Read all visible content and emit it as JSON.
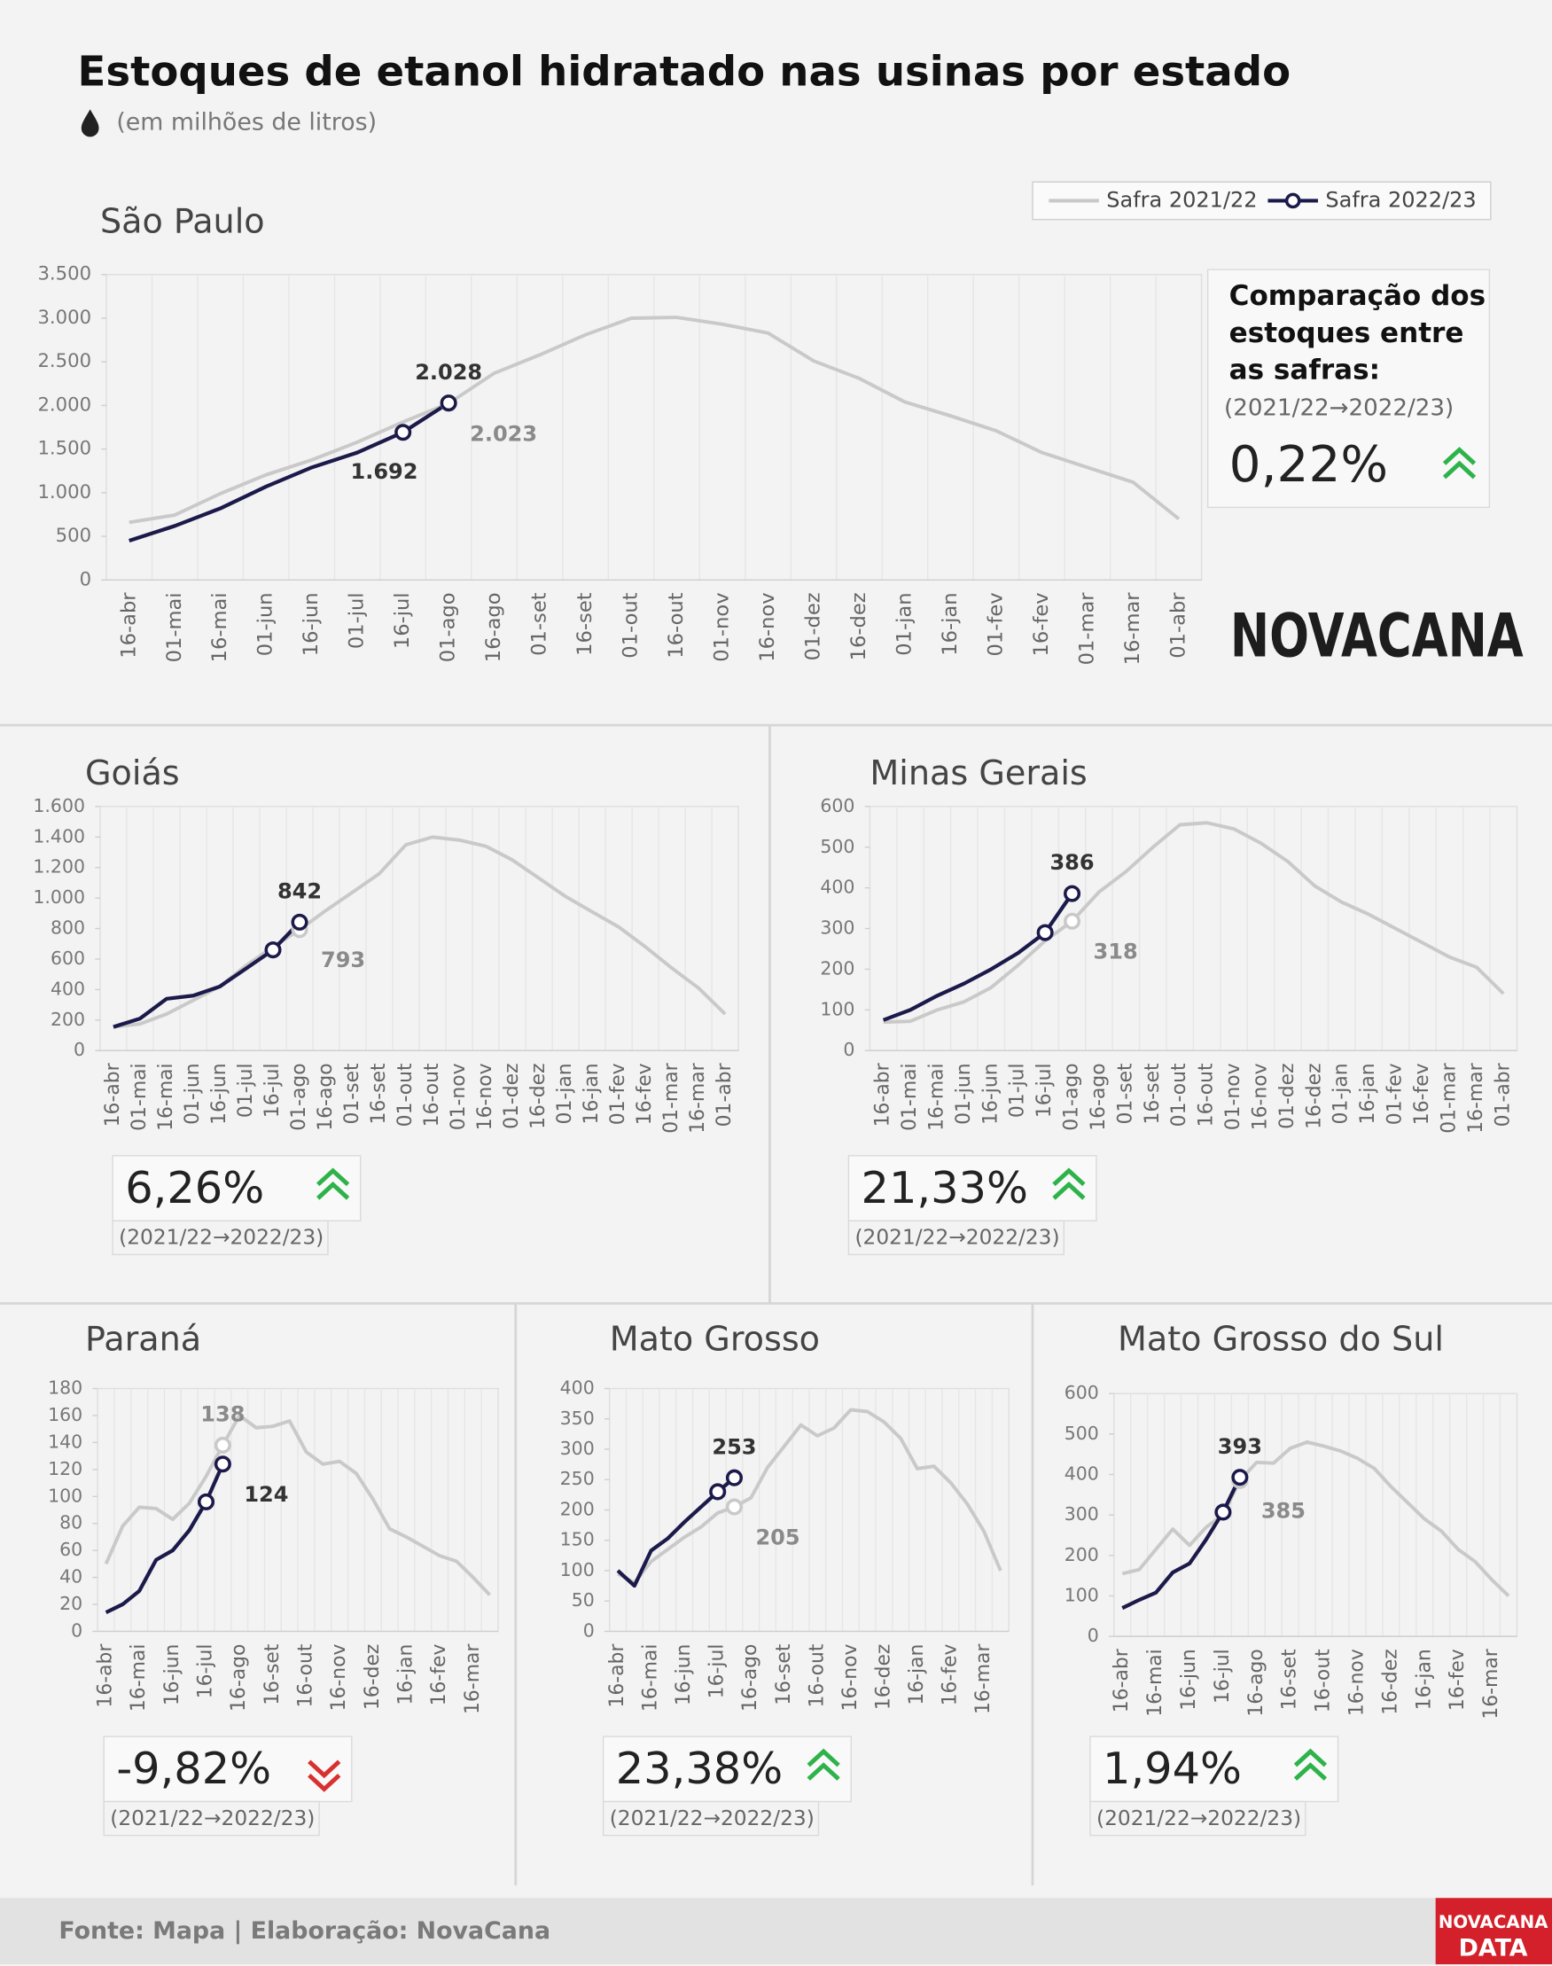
{
  "title": "Estoques de etanol hidratado nas usinas por estado",
  "subtitle": "(em milhões de litros)",
  "logo": "NOVACANA",
  "comparison_heading": "Comparação dos estoques entre as safras:",
  "source": "Fonte: Mapa | Elaboração: NovaCana",
  "footer_logo": {
    "top": "NOVACANA",
    "bottom": "DATA"
  },
  "chart_data": [
    {
      "type": "line",
      "title": "São Paulo",
      "legend": true,
      "categories": [
        "16-abr",
        "01-mai",
        "16-mai",
        "01-jun",
        "16-jun",
        "01-jul",
        "16-jul",
        "01-ago",
        "16-ago",
        "01-set",
        "16-set",
        "01-out",
        "16-out",
        "01-nov",
        "16-nov",
        "01-dez",
        "16-dez",
        "01-jan",
        "16-jan",
        "01-fev",
        "16-fev",
        "01-mar",
        "16-mar",
        "01-abr"
      ],
      "series": [
        {
          "name": "Safra 2021/22",
          "color": "#c9c9c9",
          "values": [
            660,
            745,
            990,
            1205,
            1375,
            1580,
            1810,
            2023,
            2370,
            2580,
            2810,
            3000,
            3010,
            2930,
            2830,
            2510,
            2310,
            2040,
            1880,
            1710,
            1460,
            1290,
            1120,
            700
          ],
          "value_labels": [
            null,
            null,
            null,
            null,
            null,
            null,
            null,
            "2.023",
            null,
            null,
            null,
            null,
            null,
            null,
            null,
            null,
            null,
            null,
            null,
            null,
            null,
            null,
            null,
            null
          ]
        },
        {
          "name": "Safra 2022/23",
          "color": "#1b1a4a",
          "values": [
            450,
            620,
            820,
            1070,
            1290,
            1460,
            1692,
            2028,
            null,
            null,
            null,
            null,
            null,
            null,
            null,
            null,
            null,
            null,
            null,
            null,
            null,
            null,
            null,
            null
          ],
          "value_labels": [
            null,
            null,
            null,
            null,
            null,
            null,
            "1.692",
            "2.028",
            null,
            null,
            null,
            null,
            null,
            null,
            null,
            null,
            null,
            null,
            null,
            null,
            null,
            null,
            null,
            null
          ]
        }
      ],
      "ylim": [
        0,
        3500
      ],
      "yticks": [
        0,
        500,
        {
          "value": 1000,
          "label": "1.000"
        },
        {
          "value": 1500,
          "label": "1.500"
        },
        {
          "value": 2000,
          "label": "2.000"
        },
        {
          "value": 2500,
          "label": "2.500"
        },
        {
          "value": 3000,
          "label": "3.000"
        },
        {
          "value": 3500,
          "label": "3.500"
        }
      ],
      "change": {
        "value": 0.22,
        "label": "0,22%"
      },
      "change_period": "(2021/22→2022/23)"
    },
    {
      "type": "line",
      "title": "Goiás",
      "categories": [
        "16-abr",
        "01-mai",
        "16-mai",
        "01-jun",
        "16-jun",
        "01-jul",
        "16-jul",
        "01-ago",
        "16-ago",
        "01-set",
        "16-set",
        "01-out",
        "16-out",
        "01-nov",
        "16-nov",
        "01-dez",
        "16-dez",
        "01-jan",
        "16-jan",
        "01-fev",
        "16-fev",
        "01-mar",
        "16-mar",
        "01-abr"
      ],
      "series": [
        {
          "color": "#c9c9c9",
          "values": [
            155,
            175,
            240,
            330,
            420,
            560,
            680,
            793,
            920,
            1040,
            1160,
            1350,
            1400,
            1380,
            1340,
            1250,
            1130,
            1010,
            910,
            810,
            680,
            540,
            410,
            240
          ],
          "value_labels": [
            null,
            null,
            null,
            null,
            null,
            null,
            null,
            "793",
            null,
            null,
            null,
            null,
            null,
            null,
            null,
            null,
            null,
            null,
            null,
            null,
            null,
            null,
            null,
            null
          ]
        },
        {
          "color": "#1b1a4a",
          "values": [
            155,
            210,
            340,
            360,
            420,
            540,
            660,
            842,
            null,
            null,
            null,
            null,
            null,
            null,
            null,
            null,
            null,
            null,
            null,
            null,
            null,
            null,
            null,
            null
          ],
          "value_labels": [
            null,
            null,
            null,
            null,
            null,
            null,
            null,
            "842",
            null,
            null,
            null,
            null,
            null,
            null,
            null,
            null,
            null,
            null,
            null,
            null,
            null,
            null,
            null,
            null
          ]
        }
      ],
      "ylim": [
        0,
        1600
      ],
      "yticks": [
        0,
        200,
        400,
        600,
        800,
        {
          "value": 1000,
          "label": "1.000"
        },
        {
          "value": 1200,
          "label": "1.200"
        },
        {
          "value": 1400,
          "label": "1.400"
        },
        {
          "value": 1600,
          "label": "1.600"
        }
      ],
      "change": {
        "value": 6.26,
        "label": "6,26%"
      },
      "change_period": "(2021/22→2022/23)"
    },
    {
      "type": "line",
      "title": "Minas Gerais",
      "categories": [
        "16-abr",
        "01-mai",
        "16-mai",
        "01-jun",
        "16-jun",
        "01-jul",
        "16-jul",
        "01-ago",
        "16-ago",
        "01-set",
        "16-set",
        "01-out",
        "16-out",
        "01-nov",
        "16-nov",
        "01-dez",
        "16-dez",
        "01-jan",
        "16-jan",
        "01-fev",
        "16-fev",
        "01-mar",
        "16-mar",
        "01-abr"
      ],
      "series": [
        {
          "color": "#c9c9c9",
          "values": [
            70,
            72,
            100,
            120,
            155,
            210,
            270,
            318,
            390,
            440,
            500,
            555,
            560,
            545,
            510,
            465,
            405,
            365,
            335,
            300,
            265,
            230,
            205,
            140
          ],
          "value_labels": [
            null,
            null,
            null,
            null,
            null,
            null,
            null,
            "318",
            null,
            null,
            null,
            null,
            null,
            null,
            null,
            null,
            null,
            null,
            null,
            null,
            null,
            null,
            null,
            null
          ]
        },
        {
          "color": "#1b1a4a",
          "values": [
            75,
            100,
            135,
            165,
            200,
            240,
            290,
            386,
            null,
            null,
            null,
            null,
            null,
            null,
            null,
            null,
            null,
            null,
            null,
            null,
            null,
            null,
            null,
            null
          ],
          "value_labels": [
            null,
            null,
            null,
            null,
            null,
            null,
            null,
            "386",
            null,
            null,
            null,
            null,
            null,
            null,
            null,
            null,
            null,
            null,
            null,
            null,
            null,
            null,
            null,
            null
          ]
        }
      ],
      "ylim": [
        0,
        600
      ],
      "yticks": [
        0,
        100,
        200,
        300,
        400,
        500,
        600
      ],
      "change": {
        "value": 21.33,
        "label": "21,33%"
      },
      "change_period": "(2021/22→2022/23)"
    },
    {
      "type": "line",
      "title": "Paraná",
      "categories": [
        "16-abr",
        null,
        "16-mai",
        null,
        "16-jun",
        null,
        "16-jul",
        null,
        "16-ago",
        null,
        "16-set",
        null,
        "16-out",
        null,
        "16-nov",
        null,
        "16-dez",
        null,
        "16-jan",
        null,
        "16-fev",
        null,
        "16-mar",
        null
      ],
      "series": [
        {
          "color": "#c9c9c9",
          "values": [
            50,
            78,
            92,
            91,
            83,
            95,
            115,
            138,
            160,
            151,
            152,
            156,
            133,
            124,
            126,
            117,
            98,
            76,
            70,
            63,
            56,
            52,
            40,
            27
          ],
          "value_labels": [
            null,
            null,
            null,
            null,
            null,
            null,
            null,
            "138",
            null,
            null,
            null,
            null,
            null,
            null,
            null,
            null,
            null,
            null,
            null,
            null,
            null,
            null,
            null,
            null
          ]
        },
        {
          "color": "#1b1a4a",
          "values": [
            14,
            20,
            30,
            53,
            60,
            75,
            96,
            124,
            null,
            null,
            null,
            null,
            null,
            null,
            null,
            null,
            null,
            null,
            null,
            null,
            null,
            null,
            null,
            null
          ],
          "value_labels": [
            null,
            null,
            null,
            null,
            null,
            null,
            null,
            "124",
            null,
            null,
            null,
            null,
            null,
            null,
            null,
            null,
            null,
            null,
            null,
            null,
            null,
            null,
            null,
            null
          ]
        }
      ],
      "ylim": [
        0,
        180
      ],
      "yticks": [
        0,
        20,
        40,
        60,
        80,
        100,
        120,
        140,
        160,
        180
      ],
      "change": {
        "value": -9.82,
        "label": "-9,82%"
      },
      "change_period": "(2021/22→2022/23)"
    },
    {
      "type": "line",
      "title": "Mato Grosso",
      "categories": [
        "16-abr",
        null,
        "16-mai",
        null,
        "16-jun",
        null,
        "16-jul",
        null,
        "16-ago",
        null,
        "16-set",
        null,
        "16-out",
        null,
        "16-nov",
        null,
        "16-dez",
        null,
        "16-jan",
        null,
        "16-fev",
        null,
        "16-mar",
        null
      ],
      "series": [
        {
          "color": "#c9c9c9",
          "values": [
            95,
            80,
            115,
            135,
            155,
            172,
            195,
            205,
            220,
            270,
            305,
            340,
            322,
            335,
            365,
            362,
            345,
            318,
            268,
            272,
            245,
            210,
            165,
            100
          ],
          "value_labels": [
            null,
            null,
            null,
            null,
            null,
            null,
            null,
            "205",
            null,
            null,
            null,
            null,
            null,
            null,
            null,
            null,
            null,
            null,
            null,
            null,
            null,
            null,
            null,
            null
          ]
        },
        {
          "color": "#1b1a4a",
          "values": [
            100,
            75,
            133,
            153,
            180,
            205,
            230,
            253,
            null,
            null,
            null,
            null,
            null,
            null,
            null,
            null,
            null,
            null,
            null,
            null,
            null,
            null,
            null,
            null
          ],
          "value_labels": [
            null,
            null,
            null,
            null,
            null,
            null,
            null,
            "253",
            null,
            null,
            null,
            null,
            null,
            null,
            null,
            null,
            null,
            null,
            null,
            null,
            null,
            null,
            null,
            null
          ]
        }
      ],
      "ylim": [
        0,
        400
      ],
      "yticks": [
        0,
        50,
        100,
        150,
        200,
        250,
        300,
        350,
        400
      ],
      "change": {
        "value": 23.38,
        "label": "23,38%"
      },
      "change_period": "(2021/22→2022/23)"
    },
    {
      "type": "line",
      "title": "Mato Grosso do Sul",
      "categories": [
        "16-abr",
        null,
        "16-mai",
        null,
        "16-jun",
        null,
        "16-jul",
        null,
        "16-ago",
        null,
        "16-set",
        null,
        "16-out",
        null,
        "16-nov",
        null,
        "16-dez",
        null,
        "16-jan",
        null,
        "16-fev",
        null,
        "16-mar",
        null
      ],
      "series": [
        {
          "color": "#c9c9c9",
          "values": [
            155,
            165,
            215,
            265,
            225,
            270,
            300,
            385,
            430,
            428,
            465,
            480,
            470,
            458,
            440,
            415,
            370,
            330,
            290,
            260,
            215,
            185,
            140,
            100
          ],
          "value_labels": [
            null,
            null,
            null,
            null,
            null,
            null,
            null,
            "385",
            null,
            null,
            null,
            null,
            null,
            null,
            null,
            null,
            null,
            null,
            null,
            null,
            null,
            null,
            null,
            null
          ]
        },
        {
          "color": "#1b1a4a",
          "values": [
            70,
            90,
            108,
            158,
            180,
            240,
            307,
            393,
            null,
            null,
            null,
            null,
            null,
            null,
            null,
            null,
            null,
            null,
            null,
            null,
            null,
            null,
            null,
            null
          ],
          "value_labels": [
            null,
            null,
            null,
            null,
            null,
            null,
            null,
            "393",
            null,
            null,
            null,
            null,
            null,
            null,
            null,
            null,
            null,
            null,
            null,
            null,
            null,
            null,
            null,
            null
          ]
        }
      ],
      "ylim": [
        0,
        600
      ],
      "yticks": [
        0,
        100,
        200,
        300,
        400,
        500,
        600
      ],
      "change": {
        "value": 1.94,
        "label": "1,94%"
      },
      "change_period": "(2021/22→2022/23)"
    }
  ]
}
